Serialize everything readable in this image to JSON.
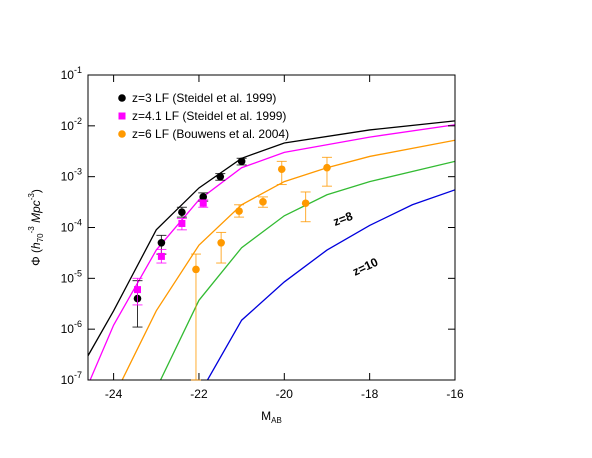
{
  "chart_data": {
    "type": "line",
    "log_y": true,
    "x_label": [
      "M",
      "AB"
    ],
    "y_label": [
      "Φ (",
      "h",
      "70",
      "-3",
      " Mpc",
      "-3",
      ")"
    ],
    "xlim": [
      -24.6,
      -16
    ],
    "xticks": [
      -24,
      -22,
      -20,
      -18,
      -16
    ],
    "ylim": [
      1e-07,
      0.1
    ],
    "yticks": [
      {
        "value": 1e-07,
        "label": "10",
        "exponent": "-7"
      },
      {
        "value": 1e-06,
        "label": "10",
        "exponent": "-6"
      },
      {
        "value": 1e-05,
        "label": "10",
        "exponent": "-5"
      },
      {
        "value": 0.0001,
        "label": "10",
        "exponent": "-4"
      },
      {
        "value": 0.001,
        "label": "10",
        "exponent": "-3"
      },
      {
        "value": 0.01,
        "label": "10",
        "exponent": "-2"
      },
      {
        "value": 0.1,
        "label": "10",
        "exponent": "-1"
      }
    ],
    "series": [
      {
        "type": "line",
        "color": "#000000",
        "x": [
          -24.6,
          -24,
          -23,
          -22,
          -21,
          -20,
          -18,
          -16
        ],
        "values": [
          3e-07,
          2.3e-06,
          9e-05,
          0.0006,
          0.0023,
          0.0046,
          0.0083,
          0.0125
        ]
      },
      {
        "type": "line",
        "color": "#ff00ff",
        "x": [
          -24.55,
          -24,
          -23,
          -22,
          -21,
          -20,
          -18,
          -16
        ],
        "values": [
          1e-07,
          1.2e-06,
          3.6e-05,
          0.00035,
          0.0015,
          0.003,
          0.006,
          0.0105
        ]
      },
      {
        "type": "line",
        "color": "#ff9900",
        "x": [
          -23.8,
          -23,
          -22,
          -21,
          -20,
          -19,
          -18,
          -16
        ],
        "values": [
          1e-07,
          2.3e-06,
          4.5e-05,
          0.00028,
          0.0008,
          0.0015,
          0.0025,
          0.0052
        ]
      },
      {
        "type": "line",
        "color": "#33bb33",
        "x": [
          -22.9,
          -22,
          -21,
          -20,
          -19,
          -18,
          -16
        ],
        "values": [
          1e-07,
          3.7e-06,
          4e-05,
          0.00017,
          0.00044,
          0.0008,
          0.002
        ]
      },
      {
        "type": "line",
        "color": "#0000dd",
        "x": [
          -21.8,
          -21,
          -20,
          -19,
          -18,
          -17,
          -16
        ],
        "values": [
          1e-07,
          1.5e-06,
          8.5e-06,
          3.6e-05,
          0.00011,
          0.00028,
          0.00055
        ]
      },
      {
        "type": "scatter",
        "name": "z=3 LF (Steidel et al. 1999)",
        "color": "#000000",
        "marker": "circle",
        "x": [
          -23.44,
          -22.88,
          -22.4,
          -21.9,
          -21.5,
          -21.0
        ],
        "values": [
          4e-06,
          5e-05,
          0.0002,
          0.0004,
          0.001,
          0.002
        ],
        "lower": [
          1.1e-06,
          3e-05,
          0.00016,
          0.00033,
          0.00085,
          0.0017
        ],
        "upper": [
          9e-06,
          7e-05,
          0.00025,
          0.00048,
          0.00115,
          0.0023
        ]
      },
      {
        "type": "scatter",
        "name": "z=4.1 LF (Steidel et al. 1999)",
        "color": "#ff00ff",
        "marker": "square",
        "x": [
          -23.44,
          -22.88,
          -22.4,
          -21.9
        ],
        "values": [
          6e-06,
          2.7e-05,
          0.00012,
          0.0003
        ],
        "lower": [
          3e-06,
          2e-05,
          9e-05,
          0.00025
        ],
        "upper": [
          1e-05,
          3.7e-05,
          0.00015,
          0.00035
        ]
      },
      {
        "type": "scatter",
        "name": "z=6 LF (Bouwens et al. 2004)",
        "color": "#ff9900",
        "marker": "circle",
        "x": [
          -22.07,
          -21.48,
          -21.06,
          -20.5,
          -20.06,
          -19.5,
          -19.0
        ],
        "values": [
          1.5e-05,
          5e-05,
          0.00021,
          0.00032,
          0.0014,
          0.0003,
          0.0015
        ],
        "lower": [
          1e-07,
          2e-05,
          0.00016,
          0.00025,
          0.0007,
          0.00013,
          0.00065
        ],
        "upper": [
          3e-05,
          8e-05,
          0.00028,
          0.0004,
          0.002,
          0.0005,
          0.0024
        ]
      }
    ],
    "annotations": [
      "z=8",
      "z=10"
    ]
  }
}
